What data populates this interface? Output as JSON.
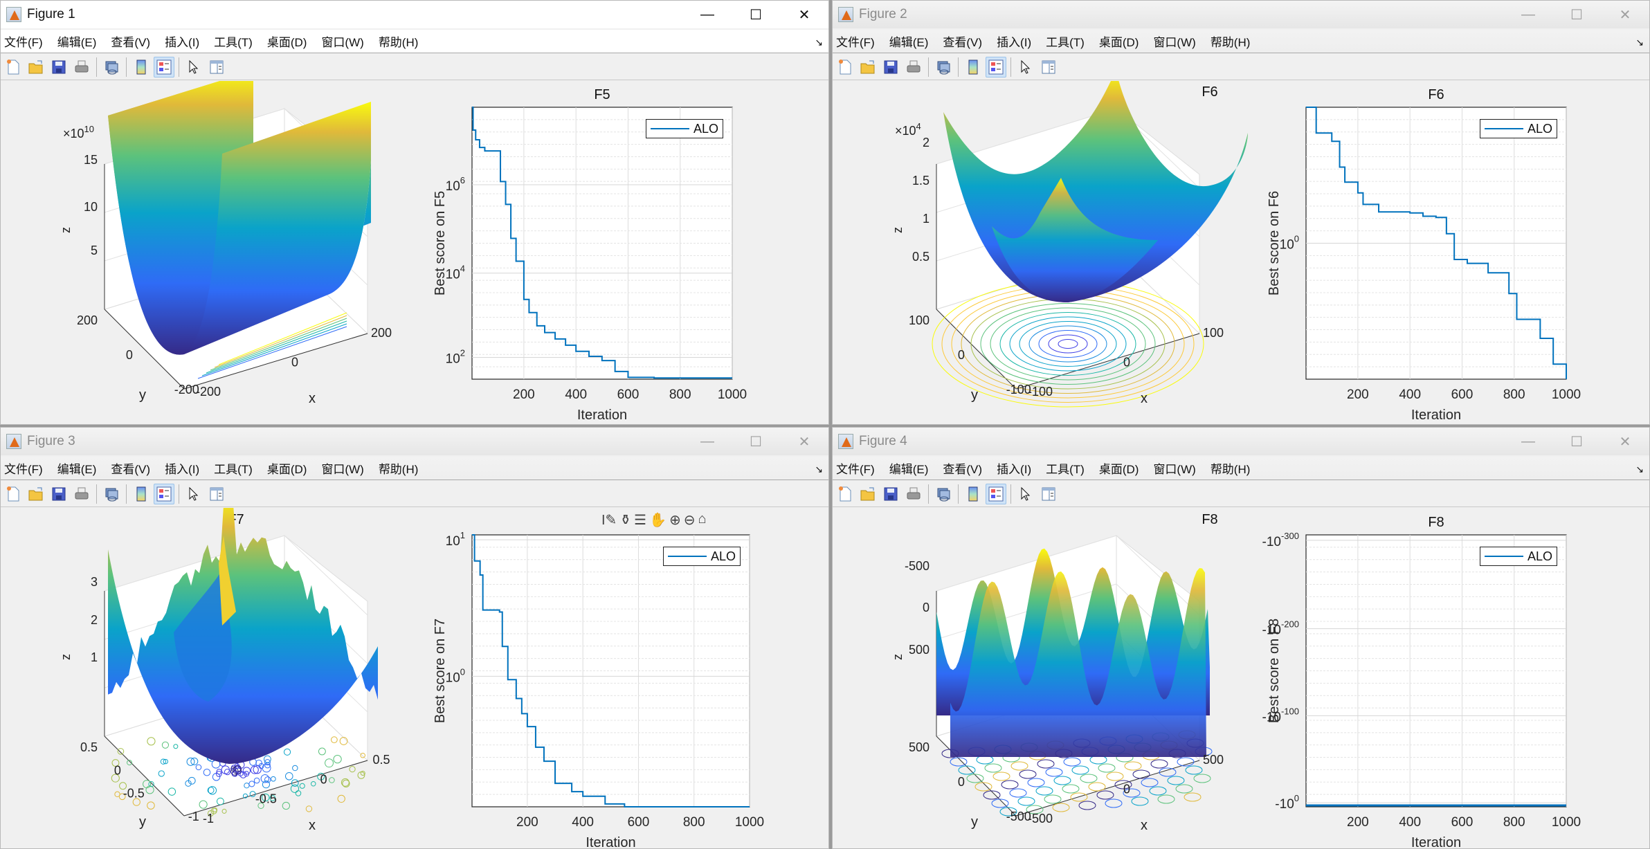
{
  "windows": [
    {
      "title": "Figure 1",
      "active": true,
      "menu": [
        "文件(F)",
        "编辑(E)",
        "查看(V)",
        "插入(I)",
        "工具(T)",
        "桌面(D)",
        "窗口(W)",
        "帮助(H)"
      ],
      "surface_title": "F5",
      "surface": {
        "x_ticks": [
          "-200",
          "0",
          "200"
        ],
        "y_ticks": [
          "-200",
          "0",
          "200"
        ],
        "z_ticks": [
          "5",
          "10",
          "15"
        ],
        "z_multiplier": "×10",
        "z_exponent": "10",
        "xlabel": "x",
        "ylabel": "y",
        "zlabel": "z"
      },
      "conv_title": "F5",
      "conv_ylabel": "Best score on F5",
      "conv_xlabel": "Iteration",
      "conv_x_ticks": [
        "200",
        "400",
        "600",
        "800",
        "1000"
      ],
      "conv_y_ticks": [
        {
          "base": "10",
          "exp": "6"
        },
        {
          "base": "10",
          "exp": "4"
        },
        {
          "base": "10",
          "exp": "2"
        }
      ],
      "legend": "ALO"
    },
    {
      "title": "Figure 2",
      "active": false,
      "menu": [
        "文件(F)",
        "编辑(E)",
        "查看(V)",
        "插入(I)",
        "工具(T)",
        "桌面(D)",
        "窗口(W)",
        "帮助(H)"
      ],
      "surface_title": "F6",
      "surface": {
        "x_ticks": [
          "-100",
          "0",
          "100"
        ],
        "y_ticks": [
          "-100",
          "0",
          "100"
        ],
        "z_ticks": [
          "0.5",
          "1",
          "1.5",
          "2"
        ],
        "z_multiplier": "×10",
        "z_exponent": "4",
        "xlabel": "x",
        "ylabel": "y",
        "zlabel": "z"
      },
      "conv_title": "F6",
      "conv_ylabel": "Best score on F6",
      "conv_xlabel": "Iteration",
      "conv_x_ticks": [
        "200",
        "400",
        "600",
        "800",
        "1000"
      ],
      "conv_y_ticks": [
        {
          "base": "10",
          "exp": "0"
        }
      ],
      "legend": "ALO"
    },
    {
      "title": "Figure 3",
      "active": false,
      "menu": [
        "文件(F)",
        "编辑(E)",
        "查看(V)",
        "插入(I)",
        "工具(T)",
        "桌面(D)",
        "窗口(W)",
        "帮助(H)"
      ],
      "surface_title": "F7",
      "surface": {
        "x_ticks": [
          "-1",
          "-0.5",
          "0",
          "0.5"
        ],
        "y_ticks": [
          "-1",
          "-0.5",
          "0",
          "0.5"
        ],
        "z_ticks": [
          "1",
          "2",
          "3"
        ],
        "xlabel": "x",
        "ylabel": "y",
        "zlabel": "z"
      },
      "conv_title": "",
      "conv_ylabel": "Best score on F7",
      "conv_xlabel": "Iteration",
      "conv_x_ticks": [
        "200",
        "400",
        "600",
        "800",
        "1000"
      ],
      "conv_y_ticks": [
        {
          "base": "10",
          "exp": "1"
        },
        {
          "base": "10",
          "exp": "0"
        }
      ],
      "legend": "ALO",
      "axes_toolbar": [
        "data-tip-icon",
        "brush-icon",
        "legend-toggle-icon",
        "pan-icon",
        "zoom-in-icon",
        "zoom-out-icon",
        "home-icon"
      ]
    },
    {
      "title": "Figure 4",
      "active": false,
      "menu": [
        "文件(F)",
        "编辑(E)",
        "查看(V)",
        "插入(I)",
        "工具(T)",
        "桌面(D)",
        "窗口(W)",
        "帮助(H)"
      ],
      "surface_title": "F8",
      "surface": {
        "x_ticks": [
          "-500",
          "0",
          "500"
        ],
        "y_ticks": [
          "-500",
          "0",
          "500"
        ],
        "z_ticks": [
          "-500",
          "0",
          "500"
        ],
        "xlabel": "x",
        "ylabel": "y",
        "zlabel": "z"
      },
      "conv_title": "F8",
      "conv_ylabel": "Best score on F8",
      "conv_xlabel": "Iteration",
      "conv_x_ticks": [
        "200",
        "400",
        "600",
        "800",
        "1000"
      ],
      "conv_y_ticks": [
        {
          "base": "-10",
          "exp": "-300"
        },
        {
          "base": "-10",
          "exp": "-200"
        },
        {
          "base": "-10",
          "exp": "-100"
        },
        {
          "base": "-10",
          "exp": "0"
        }
      ],
      "legend": "ALO"
    }
  ],
  "toolbar_icons": [
    "new-figure-icon",
    "open-file-icon",
    "save-icon",
    "print-icon",
    "link-figure-icon",
    "colorbar-icon",
    "legend-icon",
    "pointer-icon",
    "property-inspector-icon"
  ],
  "colors": {
    "line": "#0072bd",
    "grid": "#dcdcdc",
    "window_bg": "#f0f0f0"
  },
  "chart_data": [
    {
      "type": "line",
      "title": "F5",
      "xlabel": "Iteration",
      "ylabel": "Best score on F5",
      "yscale": "log",
      "xlim": [
        1,
        1000
      ],
      "ylim": [
        30,
        50000000.0
      ],
      "series": [
        {
          "name": "ALO",
          "x": [
            1,
            5,
            15,
            30,
            50,
            95,
            110,
            130,
            150,
            170,
            200,
            220,
            250,
            280,
            320,
            360,
            400,
            450,
            500,
            550,
            600,
            700,
            800,
            1000
          ],
          "values": [
            50000000.0,
            15000000.0,
            9000000.0,
            6000000.0,
            5000000.0,
            5000000.0,
            1000000.0,
            300000.0,
            50000.0,
            15000.0,
            2000.0,
            1000.0,
            500,
            350,
            250,
            180,
            130,
            100,
            80,
            45,
            33,
            32,
            32,
            32
          ]
        }
      ]
    },
    {
      "type": "line",
      "title": "F6",
      "xlabel": "Iteration",
      "ylabel": "Best score on F6",
      "yscale": "log",
      "xlim": [
        1,
        1000
      ],
      "series": [
        {
          "name": "ALO",
          "x": [
            1,
            40,
            100,
            130,
            150,
            200,
            220,
            280,
            400,
            450,
            500,
            540,
            570,
            620,
            700,
            750,
            780,
            810,
            900,
            950,
            1000
          ],
          "values": [
            30,
            15,
            12,
            6,
            4,
            3,
            2.2,
            1.8,
            1.75,
            1.6,
            1.55,
            1.0,
            0.5,
            0.45,
            0.35,
            0.35,
            0.2,
            0.1,
            0.06,
            0.03,
            0.02
          ]
        }
      ]
    },
    {
      "type": "line",
      "title": "",
      "xlabel": "Iteration",
      "ylabel": "Best score on F7",
      "yscale": "log",
      "xlim": [
        1,
        1000
      ],
      "ylim": [
        0.1,
        11
      ],
      "series": [
        {
          "name": "ALO",
          "x": [
            1,
            10,
            30,
            40,
            100,
            110,
            130,
            160,
            180,
            200,
            230,
            260,
            300,
            360,
            400,
            480,
            550,
            1000
          ],
          "values": [
            11,
            7,
            5.5,
            3,
            2.9,
            1.6,
            0.9,
            0.65,
            0.5,
            0.4,
            0.28,
            0.22,
            0.15,
            0.13,
            0.12,
            0.105,
            0.1,
            0.1
          ]
        }
      ]
    },
    {
      "type": "line",
      "title": "F8",
      "xlabel": "Iteration",
      "ylabel": "Best score on F8",
      "yscale": "log",
      "xlim": [
        1,
        1000
      ],
      "series": [
        {
          "name": "ALO",
          "x": [
            1,
            1000
          ],
          "values": [
            -1,
            -1
          ]
        }
      ]
    }
  ]
}
